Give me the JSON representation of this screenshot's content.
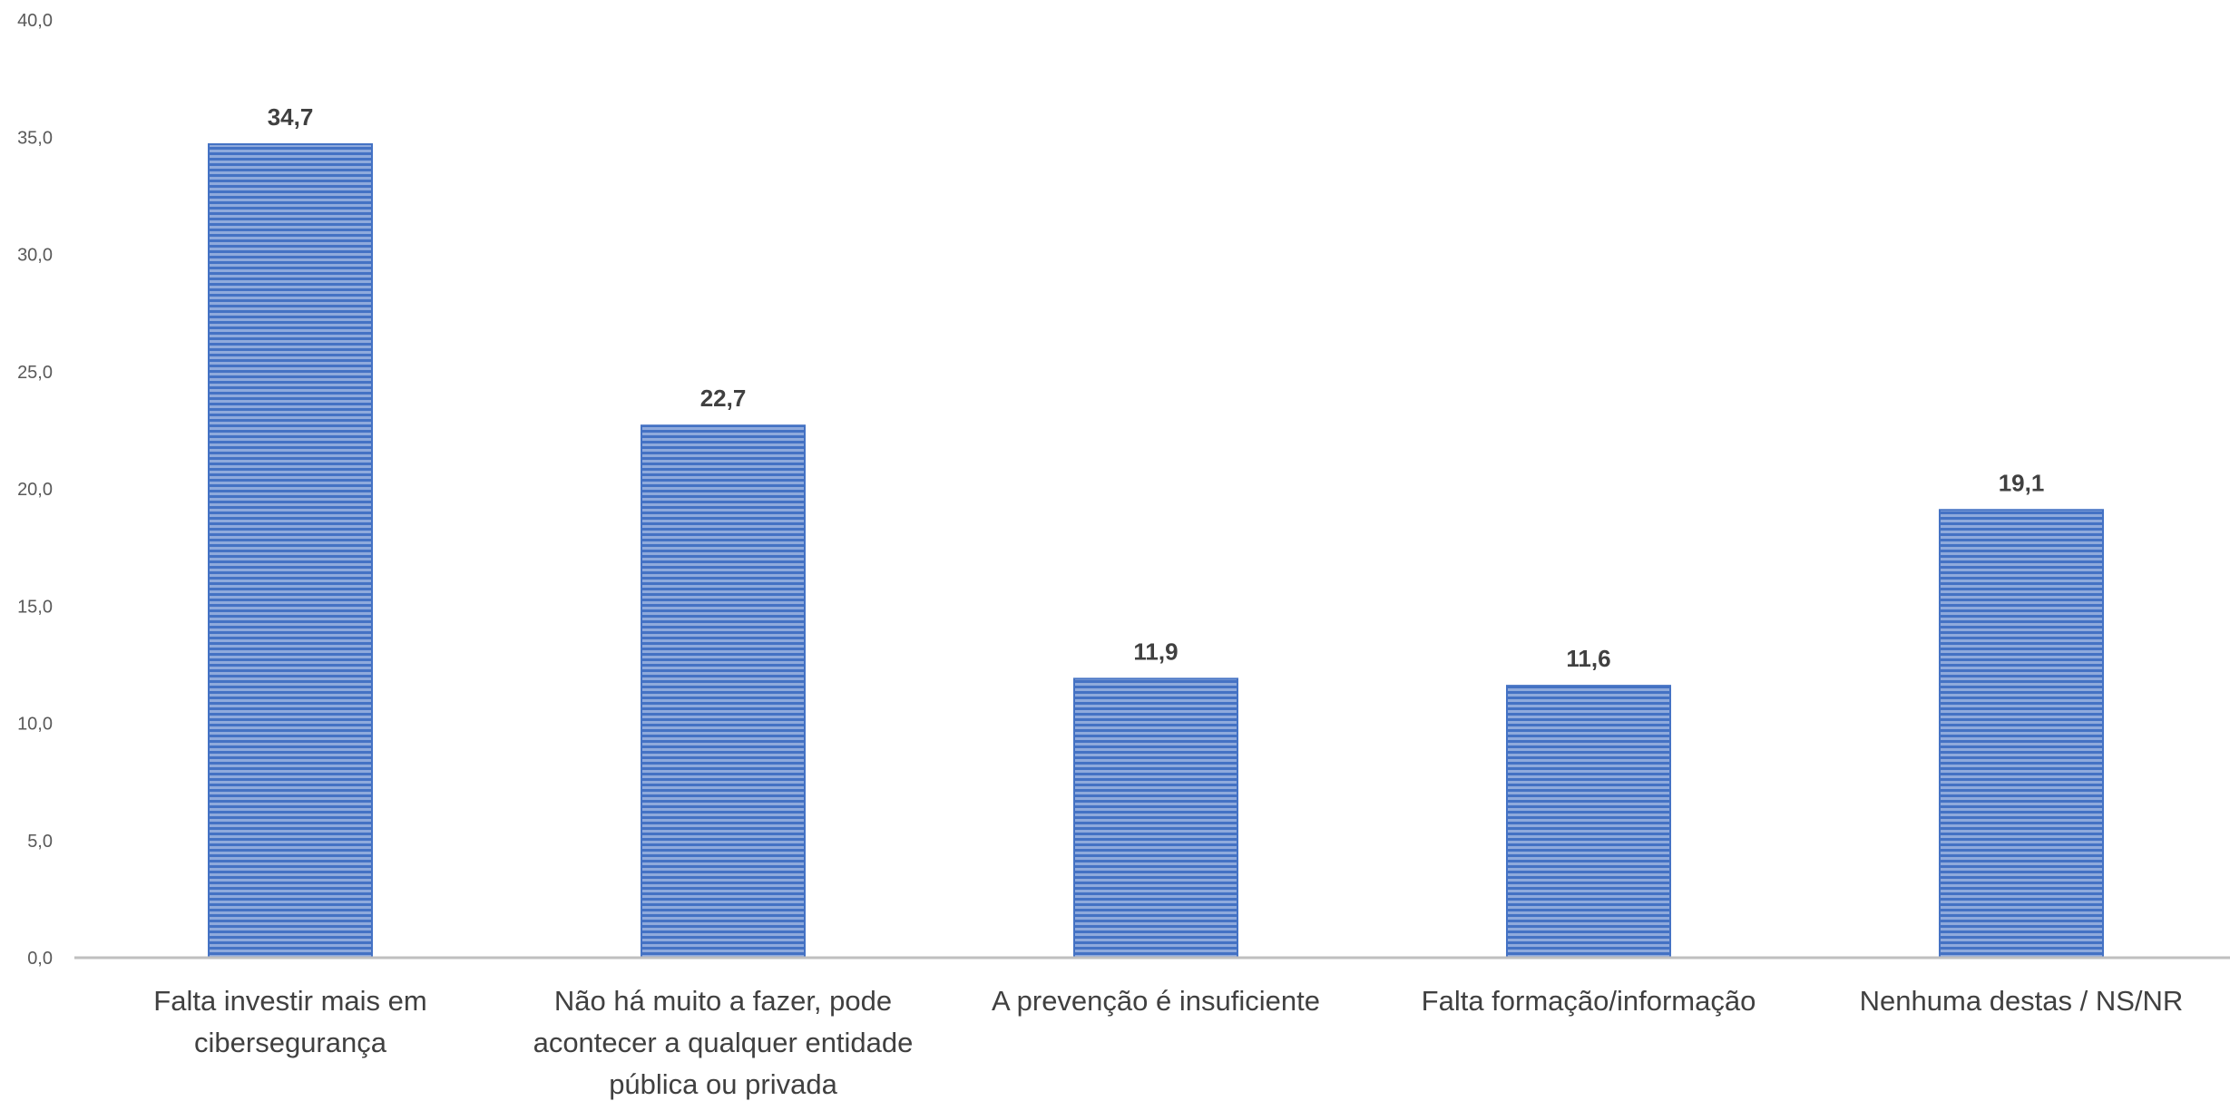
{
  "chart_data": {
    "type": "bar",
    "categories": [
      [
        "Falta investir mais em",
        "cibersegurança"
      ],
      [
        "Não há muito a fazer, pode",
        "acontecer a qualquer entidade",
        "pública ou privada"
      ],
      [
        "A prevenção é insuficiente"
      ],
      [
        "Falta formação/informação"
      ],
      [
        "Nenhuma destas / NS/NR"
      ]
    ],
    "values": [
      34.7,
      22.7,
      11.9,
      11.6,
      19.1
    ],
    "data_labels": [
      "34,7",
      "22,7",
      "11,9",
      "11,6",
      "19,1"
    ],
    "yticks": [
      "0,0",
      "5,0",
      "10,0",
      "15,0",
      "20,0",
      "25,0",
      "30,0",
      "35,0",
      "40,0"
    ],
    "ylim": [
      0,
      40
    ],
    "title": "",
    "xlabel": "",
    "ylabel": "",
    "grid": false,
    "bar_color": "#4472c4",
    "bar_stripe_color": "#8faadc",
    "axis_color": "#bfbfbf"
  }
}
